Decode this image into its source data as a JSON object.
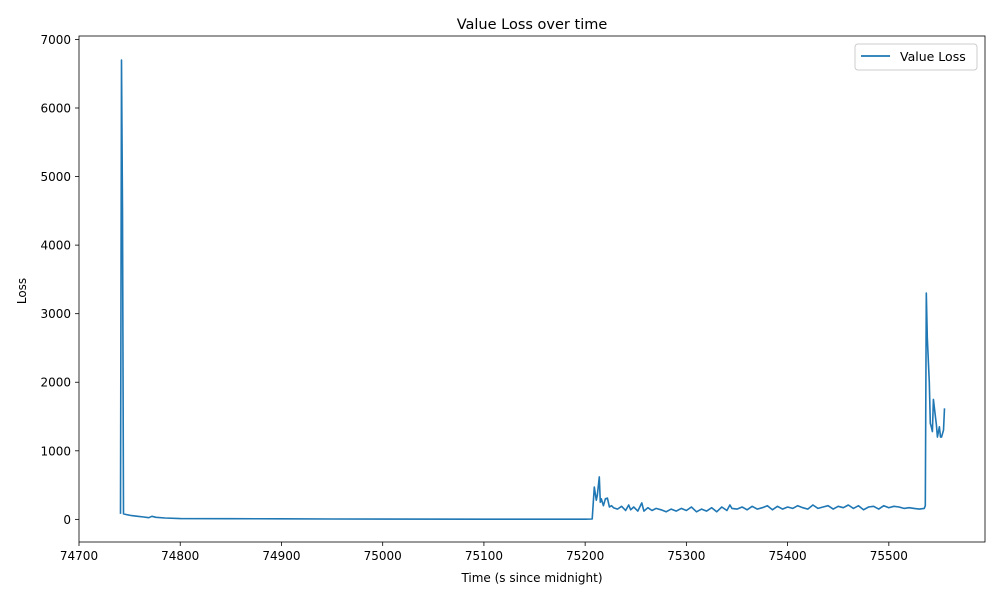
{
  "chart_data": {
    "type": "line",
    "title": "Value Loss over time",
    "xlabel": "Time (s since midnight)",
    "ylabel": "Loss",
    "xlim": [
      74700,
      75595
    ],
    "ylim": [
      -330,
      7050
    ],
    "xticks": [
      74700,
      74800,
      74900,
      75000,
      75100,
      75200,
      75300,
      75400,
      75500
    ],
    "yticks": [
      0,
      1000,
      2000,
      3000,
      4000,
      5000,
      6000,
      7000
    ],
    "grid": false,
    "legend_position": "top-right",
    "series": [
      {
        "name": "Value Loss",
        "color": "#1f77b4",
        "x": [
          74741,
          74742,
          74743,
          74744,
          74747,
          74752,
          74758,
          74764,
          74769,
          74772,
          74776,
          74785,
          74800,
          74850,
          74900,
          74950,
          75000,
          75100,
          75150,
          75200,
          75207,
          75209,
          75211,
          75212,
          75214,
          75215,
          75216,
          75218,
          75220,
          75222,
          75224,
          75226,
          75228,
          75232,
          75236,
          75240,
          75243,
          75245,
          75248,
          75252,
          75256,
          75258,
          75262,
          75266,
          75270,
          75275,
          75280,
          75285,
          75290,
          75295,
          75300,
          75305,
          75310,
          75315,
          75320,
          75325,
          75330,
          75335,
          75340,
          75343,
          75345,
          75350,
          75355,
          75360,
          75365,
          75370,
          75375,
          75380,
          75385,
          75390,
          75395,
          75400,
          75405,
          75410,
          75415,
          75420,
          75425,
          75430,
          75435,
          75440,
          75445,
          75450,
          75455,
          75460,
          75465,
          75470,
          75475,
          75480,
          75485,
          75490,
          75495,
          75500,
          75505,
          75510,
          75515,
          75520,
          75525,
          75530,
          75535,
          75536,
          75537,
          75538,
          75540,
          75541,
          75542,
          75543,
          75544,
          75546,
          75547,
          75548,
          75550,
          75551,
          75552,
          75554,
          75555
        ],
        "y": [
          80,
          6700,
          4500,
          80,
          70,
          55,
          45,
          35,
          25,
          45,
          30,
          20,
          12,
          10,
          8,
          5,
          4,
          3,
          3,
          3,
          5,
          470,
          280,
          350,
          620,
          250,
          300,
          200,
          300,
          310,
          180,
          200,
          170,
          150,
          190,
          130,
          210,
          140,
          180,
          120,
          240,
          120,
          170,
          130,
          160,
          140,
          110,
          150,
          120,
          160,
          130,
          180,
          110,
          150,
          120,
          170,
          110,
          180,
          130,
          210,
          160,
          150,
          180,
          140,
          190,
          150,
          170,
          200,
          140,
          190,
          150,
          180,
          160,
          200,
          170,
          150,
          210,
          160,
          180,
          200,
          150,
          190,
          170,
          210,
          160,
          200,
          140,
          180,
          190,
          150,
          200,
          170,
          190,
          180,
          160,
          170,
          160,
          150,
          160,
          200,
          3300,
          2650,
          2000,
          1400,
          1350,
          1280,
          1750,
          1500,
          1380,
          1200,
          1350,
          1200,
          1200,
          1300,
          1620
        ]
      }
    ]
  }
}
